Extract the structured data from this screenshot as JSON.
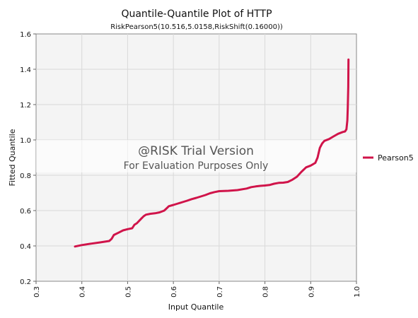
{
  "chart_data": {
    "type": "line",
    "title": "Quantile-Quantile Plot of HTTP",
    "subtitle": "RiskPearson5(10.516,5.0158,RiskShift(0.16000))",
    "xlabel": "Input Quantile",
    "ylabel": "Fitted Quantile",
    "xlim": [
      0.3,
      1.0
    ],
    "ylim": [
      0.2,
      1.6
    ],
    "x_ticks": [
      "0.3",
      "0.4",
      "0.5",
      "0.6",
      "0.7",
      "0.8",
      "0.9",
      "1.0"
    ],
    "y_ticks": [
      "0.2",
      "0.4",
      "0.6",
      "0.8",
      "1.0",
      "1.2",
      "1.4",
      "1.6"
    ],
    "grid": true,
    "legend_position": "right",
    "watermark": {
      "line1": "@RISK Trial Version",
      "line2": "For Evaluation Purposes Only"
    },
    "series": [
      {
        "name": "Pearson5",
        "color": "#d0144a",
        "x": [
          0.385,
          0.4,
          0.42,
          0.44,
          0.46,
          0.465,
          0.47,
          0.48,
          0.49,
          0.5,
          0.51,
          0.515,
          0.52,
          0.53,
          0.535,
          0.54,
          0.55,
          0.56,
          0.57,
          0.58,
          0.585,
          0.59,
          0.6,
          0.61,
          0.62,
          0.63,
          0.64,
          0.65,
          0.66,
          0.67,
          0.68,
          0.69,
          0.7,
          0.72,
          0.74,
          0.76,
          0.77,
          0.78,
          0.79,
          0.8,
          0.81,
          0.82,
          0.83,
          0.84,
          0.85,
          0.86,
          0.87,
          0.88,
          0.89,
          0.9,
          0.91,
          0.915,
          0.92,
          0.925,
          0.93,
          0.94,
          0.95,
          0.96,
          0.97,
          0.975,
          0.978,
          0.98,
          0.981,
          0.982,
          0.9825
        ],
        "y": [
          0.397,
          0.405,
          0.413,
          0.42,
          0.428,
          0.44,
          0.462,
          0.475,
          0.488,
          0.495,
          0.5,
          0.52,
          0.528,
          0.555,
          0.568,
          0.577,
          0.582,
          0.585,
          0.59,
          0.6,
          0.612,
          0.625,
          0.632,
          0.64,
          0.648,
          0.656,
          0.665,
          0.672,
          0.68,
          0.688,
          0.698,
          0.705,
          0.71,
          0.712,
          0.716,
          0.725,
          0.733,
          0.737,
          0.74,
          0.742,
          0.745,
          0.752,
          0.757,
          0.758,
          0.762,
          0.775,
          0.792,
          0.82,
          0.845,
          0.855,
          0.87,
          0.9,
          0.955,
          0.98,
          0.995,
          1.005,
          1.02,
          1.035,
          1.045,
          1.048,
          1.06,
          1.11,
          1.18,
          1.3,
          1.455
        ]
      }
    ]
  }
}
